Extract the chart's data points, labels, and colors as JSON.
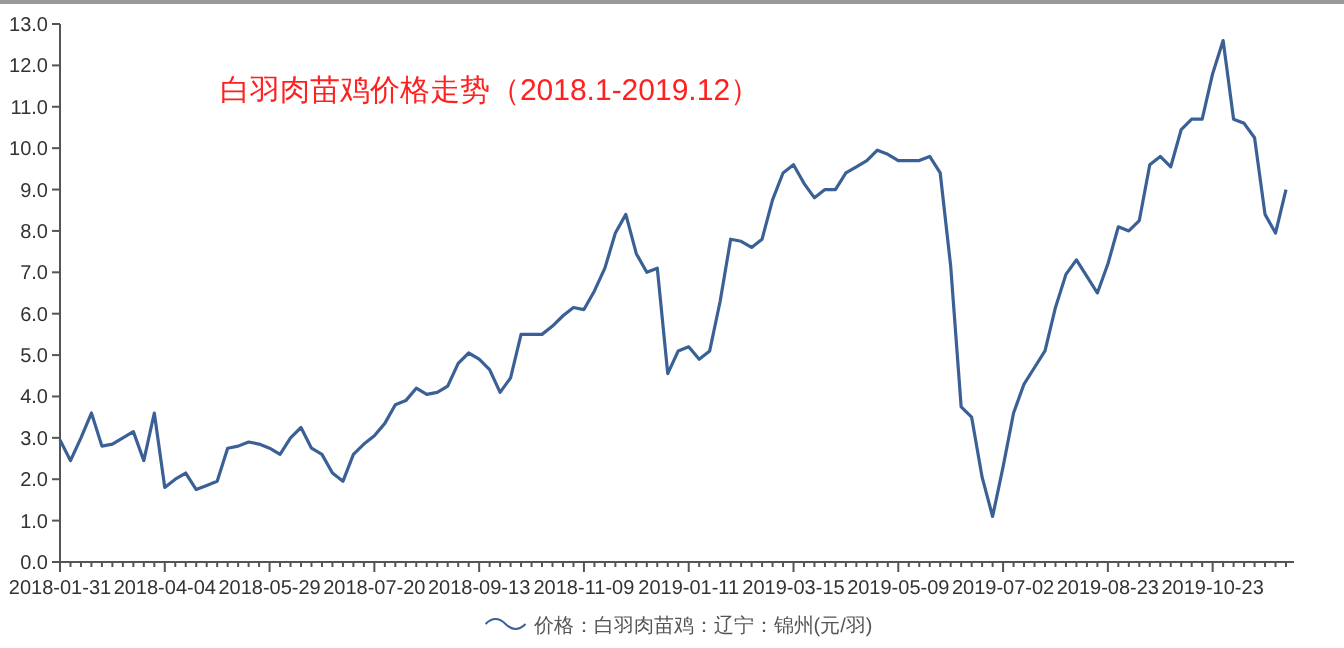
{
  "chart_data": {
    "type": "line",
    "title": "白羽肉苗鸡价格走势（2018.1-2019.12）",
    "categories": [
      "2018-01-31",
      null,
      null,
      null,
      null,
      null,
      null,
      null,
      null,
      null,
      "2018-04-04",
      null,
      null,
      null,
      null,
      null,
      null,
      null,
      null,
      null,
      "2018-05-29",
      null,
      null,
      null,
      null,
      null,
      null,
      null,
      null,
      null,
      "2018-07-20",
      null,
      null,
      null,
      null,
      null,
      null,
      null,
      null,
      null,
      "2018-09-13",
      null,
      null,
      null,
      null,
      null,
      null,
      null,
      null,
      null,
      "2018-11-09",
      null,
      null,
      null,
      null,
      null,
      null,
      null,
      null,
      null,
      "2019-01-11",
      null,
      null,
      null,
      null,
      null,
      null,
      null,
      null,
      null,
      "2019-03-15",
      null,
      null,
      null,
      null,
      null,
      null,
      null,
      null,
      null,
      "2019-05-09",
      null,
      null,
      null,
      null,
      null,
      null,
      null,
      null,
      null,
      "2019-07-02",
      null,
      null,
      null,
      null,
      null,
      null,
      null,
      null,
      null,
      "2019-08-23",
      null,
      null,
      null,
      null,
      null,
      null,
      null,
      null,
      null,
      "2019-10-23",
      null,
      null,
      null,
      null,
      null,
      null,
      null
    ],
    "series": [
      {
        "name": "价格：白羽肉苗鸡：辽宁：锦州(元/羽)",
        "color": "#3a6096",
        "values": [
          2.95,
          2.45,
          3.0,
          3.6,
          2.8,
          2.85,
          3.0,
          3.15,
          2.45,
          3.6,
          1.8,
          2.0,
          2.15,
          1.75,
          1.85,
          1.95,
          2.75,
          2.8,
          2.9,
          2.85,
          2.75,
          2.6,
          3.0,
          3.25,
          2.75,
          2.6,
          2.15,
          1.95,
          2.6,
          2.85,
          3.05,
          3.35,
          3.8,
          3.9,
          4.2,
          4.05,
          4.1,
          4.25,
          4.8,
          5.05,
          4.9,
          4.65,
          4.1,
          4.45,
          5.5,
          5.5,
          5.5,
          5.7,
          5.95,
          6.15,
          6.1,
          6.55,
          7.1,
          7.95,
          8.4,
          7.45,
          7.0,
          7.1,
          4.55,
          5.1,
          5.2,
          4.9,
          5.1,
          6.3,
          7.8,
          7.75,
          7.6,
          7.8,
          8.75,
          9.4,
          9.6,
          9.15,
          8.8,
          9.0,
          9.0,
          9.4,
          9.55,
          9.7,
          9.95,
          9.85,
          9.7,
          9.7,
          9.7,
          9.8,
          9.4,
          7.15,
          3.75,
          3.5,
          2.05,
          1.1,
          2.3,
          3.6,
          4.3,
          4.7,
          5.1,
          6.15,
          6.95,
          7.3,
          6.9,
          6.5,
          7.2,
          8.1,
          8.0,
          8.25,
          9.6,
          9.8,
          9.55,
          10.45,
          10.7,
          10.7,
          11.8,
          12.6,
          10.7,
          10.6,
          10.25,
          8.4,
          7.95,
          9.0
        ]
      }
    ],
    "ylim": [
      0,
      13
    ],
    "yticks": [
      {
        "value": 0,
        "label": "0.0"
      },
      {
        "value": 1,
        "label": "1.0"
      },
      {
        "value": 2,
        "label": "2.0"
      },
      {
        "value": 3,
        "label": "3.0"
      },
      {
        "value": 4,
        "label": "4.0"
      },
      {
        "value": 5,
        "label": "5.0"
      },
      {
        "value": 6,
        "label": "6.0"
      },
      {
        "value": 7,
        "label": "7.0"
      },
      {
        "value": 8,
        "label": "8.0"
      },
      {
        "value": 9,
        "label": "9.0"
      },
      {
        "value": 10,
        "label": "10.0"
      },
      {
        "value": 11,
        "label": "11.0"
      },
      {
        "value": 12,
        "label": "12.0"
      },
      {
        "value": 13,
        "label": "13.0"
      }
    ],
    "legend": "bottom",
    "marker": "none",
    "line_style": "solid"
  }
}
